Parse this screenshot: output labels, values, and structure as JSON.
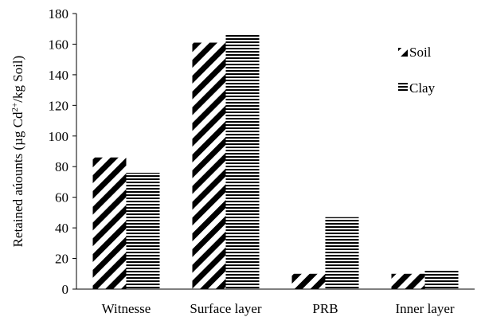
{
  "chart_data": {
    "type": "bar",
    "title": "",
    "xlabel": "",
    "ylabel_parts": [
      "Retained aúounts (µg Cd",
      "2+",
      "/kg Soil)"
    ],
    "categories": [
      "Witnesse",
      "Surface layer",
      "PRB",
      "Inner layer"
    ],
    "series": [
      {
        "name": "Soil",
        "pattern": "diagonal",
        "values": [
          86,
          161,
          10,
          10
        ]
      },
      {
        "name": "Clay",
        "pattern": "horizontal",
        "values": [
          76,
          167,
          47,
          12
        ]
      }
    ],
    "ylim": [
      0,
      180
    ],
    "yticks": [
      0,
      20,
      40,
      60,
      80,
      100,
      120,
      140,
      160,
      180
    ],
    "grid": false,
    "legend_position": "right",
    "colors": {
      "pattern": "#000000",
      "background": "#ffffff",
      "axis": "#000000"
    }
  }
}
